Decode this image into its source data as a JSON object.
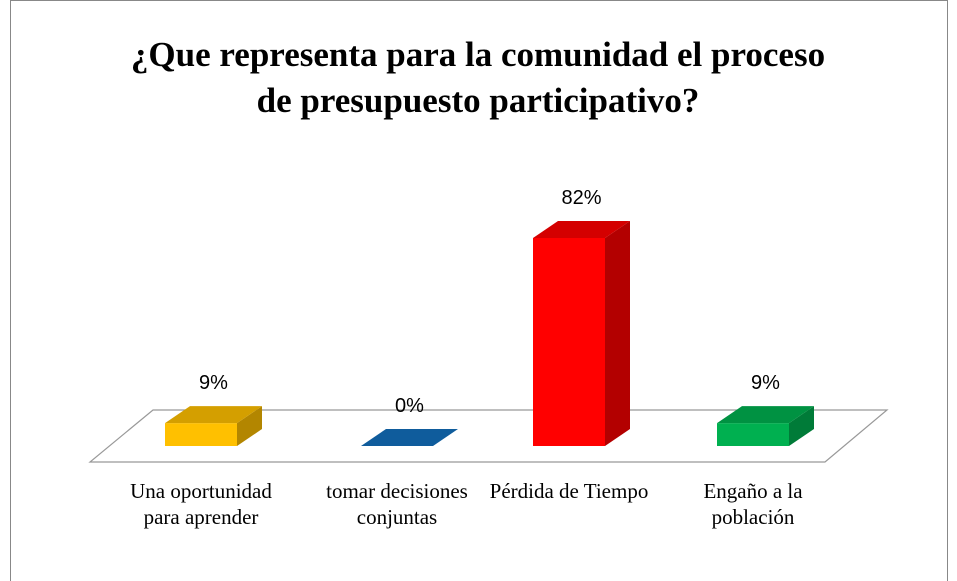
{
  "chart_data": {
    "type": "bar3d",
    "title": "¿Que representa para la comunidad el proceso de presupuesto participativo?",
    "categories": [
      "Una oportunidad para aprender",
      "tomar decisiones conjuntas",
      "Pérdida de Tiempo",
      "Engaño a la población"
    ],
    "values": [
      9,
      0,
      82,
      9
    ],
    "value_labels": [
      "9%",
      "0%",
      "82%",
      "9%"
    ],
    "colors": [
      "#FFC000",
      "#0F5C9C",
      "#FF0000",
      "#00B050"
    ]
  }
}
